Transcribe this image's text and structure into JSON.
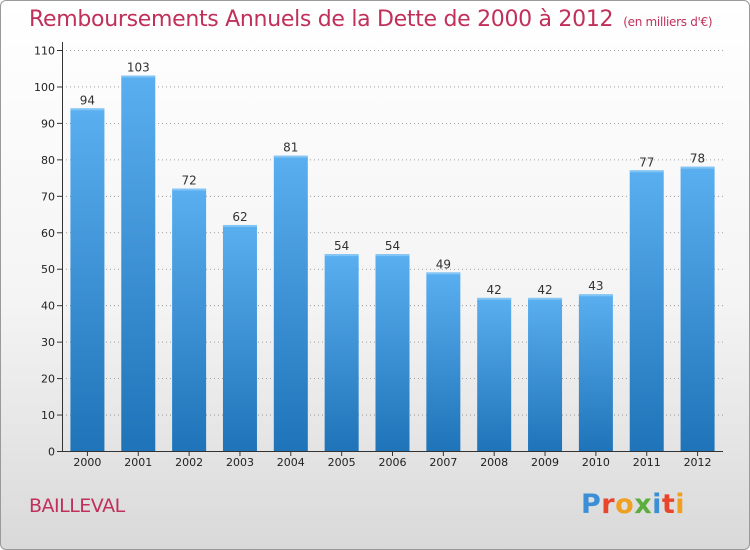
{
  "title": {
    "main": "Remboursements Annuels de la Dette de 2000 à 2012",
    "unit": "(en milliers d'€)"
  },
  "commune": "BAILLEVAL",
  "logo": {
    "text": "Proxiti",
    "colors": [
      "#3a8fd6",
      "#e8452c",
      "#f0a020",
      "#5cae3c",
      "#3a8fd6",
      "#e8452c",
      "#f0a020"
    ]
  },
  "colors": {
    "title": "#c0305a",
    "bar_top": "#5aaff0",
    "bar_bottom": "#1f73b8",
    "grid": "#888888"
  },
  "chart_data": {
    "type": "bar",
    "categories": [
      "2000",
      "2001",
      "2002",
      "2003",
      "2004",
      "2005",
      "2006",
      "2007",
      "2008",
      "2009",
      "2010",
      "2011",
      "2012"
    ],
    "values": [
      94,
      103,
      72,
      62,
      81,
      54,
      54,
      49,
      42,
      42,
      43,
      77,
      78
    ],
    "yticks": [
      0,
      10,
      20,
      30,
      40,
      50,
      60,
      70,
      80,
      90,
      100,
      110
    ],
    "ylim": [
      0,
      110
    ],
    "grid": true,
    "title": "Remboursements Annuels de la Dette de 2000 à 2012",
    "xlabel": "",
    "ylabel": ""
  }
}
